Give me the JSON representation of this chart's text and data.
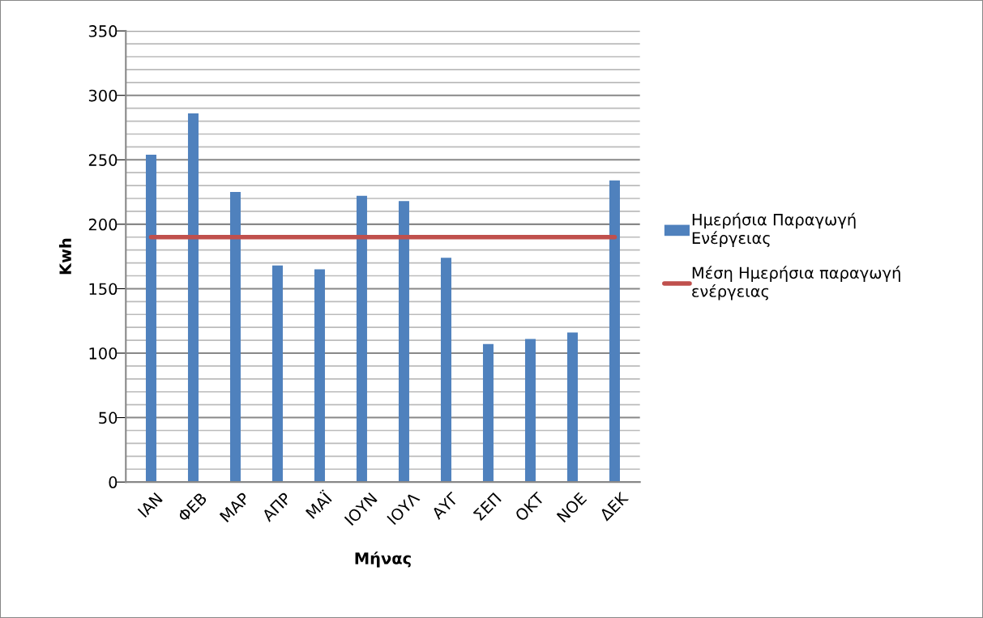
{
  "chart_data": {
    "type": "bar",
    "xlabel": "Μήνας",
    "ylabel": "Kwh",
    "categories": [
      "ΙΑΝ",
      "ΦΕΒ",
      "ΜΑΡ",
      "ΑΠΡ",
      "ΜΑΪ",
      "ΙΟΥΝ",
      "ΙΟΥΛ",
      "ΑΥΓ",
      "ΣΕΠ",
      "ΟΚΤ",
      "ΝΟΕ",
      "ΔΕΚ"
    ],
    "series": [
      {
        "name": "Ημερήσια Παραγωγή Ενέργειας",
        "color": "#4f81bd",
        "values": [
          254,
          286,
          225,
          168,
          165,
          222,
          218,
          174,
          107,
          111,
          116,
          234
        ]
      },
      {
        "name": "Μέση Ημερήσια παραγωγή ενέργειας",
        "type": "line",
        "color": "#c0504d",
        "values": [
          190,
          190,
          190,
          190,
          190,
          190,
          190,
          190,
          190,
          190,
          190,
          190
        ]
      }
    ],
    "ylim": [
      0,
      350
    ],
    "yticks": [
      0,
      {
        "value": 10,
        "label": null
      },
      {
        "value": 20,
        "label": null
      },
      {
        "value": 30,
        "label": null
      },
      {
        "value": 40,
        "label": null
      },
      50,
      {
        "value": 60,
        "label": null
      },
      {
        "value": 70,
        "label": null
      },
      {
        "value": 80,
        "label": null
      },
      {
        "value": 90,
        "label": null
      },
      100,
      {
        "value": 110,
        "label": null
      },
      {
        "value": 120,
        "label": null
      },
      {
        "value": 130,
        "label": null
      },
      {
        "value": 140,
        "label": null
      },
      150,
      {
        "value": 160,
        "label": null
      },
      {
        "value": 170,
        "label": null
      },
      {
        "value": 180,
        "label": null
      },
      {
        "value": 190,
        "label": null
      },
      200,
      {
        "value": 210,
        "label": null
      },
      {
        "value": 220,
        "label": null
      },
      {
        "value": 230,
        "label": null
      },
      {
        "value": 240,
        "label": null
      },
      250,
      {
        "value": 260,
        "label": null
      },
      {
        "value": 270,
        "label": null
      },
      {
        "value": 280,
        "label": null
      },
      {
        "value": 290,
        "label": null
      },
      300,
      {
        "value": 310,
        "label": null
      },
      {
        "value": 320,
        "label": null
      },
      {
        "value": 330,
        "label": null
      },
      {
        "value": 340,
        "label": null
      },
      350
    ],
    "grid": "y",
    "legend": "right",
    "marker": "none",
    "line_style": "solid"
  }
}
